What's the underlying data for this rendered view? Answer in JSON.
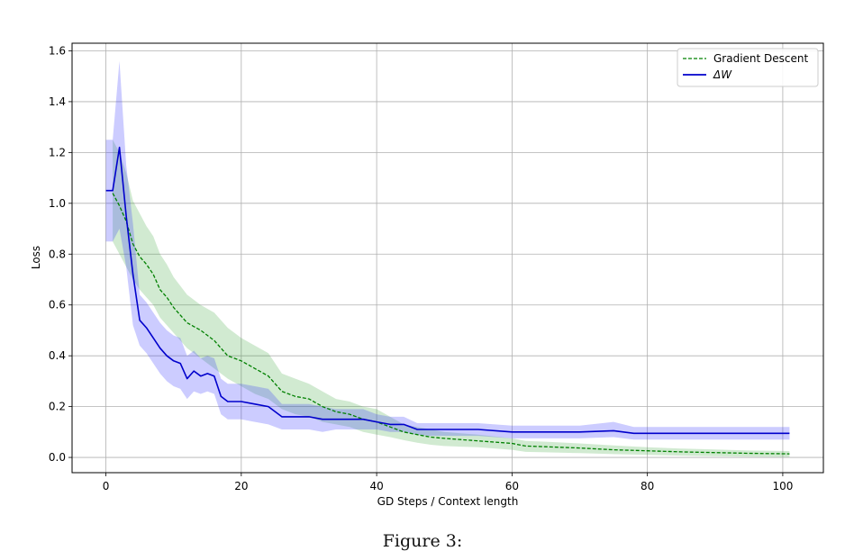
{
  "figure": {
    "caption": "Figure 3:"
  },
  "chart_data": {
    "type": "line",
    "title": "",
    "xlabel": "GD Steps / Context length",
    "ylabel": "Loss",
    "xlim": [
      -5,
      106
    ],
    "ylim": [
      -0.06,
      1.63
    ],
    "xticks": [
      0,
      20,
      40,
      60,
      80,
      100
    ],
    "yticks": [
      0.0,
      0.2,
      0.4,
      0.6,
      0.8,
      1.0,
      1.2,
      1.4,
      1.6
    ],
    "xtick_labels": [
      "0",
      "20",
      "40",
      "60",
      "80",
      "100"
    ],
    "ytick_labels": [
      "0.0",
      "0.2",
      "0.4",
      "0.6",
      "0.8",
      "1.0",
      "1.2",
      "1.4",
      "1.6"
    ],
    "grid": true,
    "legend_position": "top-right",
    "series": [
      {
        "name": "Gradient Descent",
        "color": "#008000",
        "line_style": "dashed",
        "band_color": "#2ca02c",
        "x": [
          1,
          2,
          3,
          4,
          5,
          6,
          7,
          8,
          9,
          10,
          12,
          14,
          16,
          18,
          20,
          22,
          24,
          26,
          28,
          30,
          32,
          34,
          36,
          38,
          40,
          42,
          44,
          46,
          48,
          50,
          55,
          60,
          62,
          65,
          70,
          75,
          80,
          85,
          90,
          95,
          101
        ],
        "y": [
          1.04,
          0.99,
          0.93,
          0.84,
          0.79,
          0.76,
          0.72,
          0.66,
          0.63,
          0.59,
          0.53,
          0.5,
          0.46,
          0.4,
          0.38,
          0.35,
          0.32,
          0.26,
          0.24,
          0.23,
          0.2,
          0.18,
          0.17,
          0.15,
          0.14,
          0.12,
          0.1,
          0.09,
          0.08,
          0.075,
          0.065,
          0.055,
          0.045,
          0.042,
          0.037,
          0.03,
          0.026,
          0.022,
          0.019,
          0.016,
          0.014
        ],
        "lower": [
          0.85,
          0.8,
          0.75,
          0.7,
          0.66,
          0.63,
          0.6,
          0.55,
          0.52,
          0.49,
          0.43,
          0.39,
          0.35,
          0.31,
          0.28,
          0.25,
          0.23,
          0.19,
          0.17,
          0.16,
          0.14,
          0.13,
          0.12,
          0.1,
          0.09,
          0.08,
          0.068,
          0.058,
          0.05,
          0.045,
          0.04,
          0.03,
          0.022,
          0.02,
          0.017,
          0.013,
          0.01,
          0.007,
          0.005,
          0.003,
          0.002
        ],
        "upper": [
          1.25,
          1.2,
          1.12,
          1.01,
          0.96,
          0.91,
          0.87,
          0.8,
          0.76,
          0.71,
          0.64,
          0.6,
          0.57,
          0.51,
          0.47,
          0.44,
          0.41,
          0.33,
          0.31,
          0.29,
          0.26,
          0.23,
          0.22,
          0.2,
          0.19,
          0.16,
          0.13,
          0.12,
          0.11,
          0.1,
          0.09,
          0.075,
          0.065,
          0.062,
          0.055,
          0.047,
          0.04,
          0.035,
          0.031,
          0.027,
          0.025
        ]
      },
      {
        "name": "ΔW",
        "color": "#0000cc",
        "line_style": "solid",
        "band_color": "#3333ff",
        "x": [
          0,
          1,
          2,
          3,
          4,
          5,
          6,
          7,
          8,
          9,
          10,
          11,
          12,
          13,
          14,
          15,
          16,
          17,
          18,
          20,
          22,
          24,
          26,
          28,
          30,
          32,
          34,
          36,
          38,
          40,
          42,
          44,
          46,
          48,
          50,
          55,
          60,
          65,
          70,
          75,
          78,
          80,
          85,
          90,
          95,
          101
        ],
        "y": [
          1.05,
          1.05,
          1.22,
          0.95,
          0.72,
          0.54,
          0.51,
          0.47,
          0.43,
          0.4,
          0.38,
          0.37,
          0.31,
          0.34,
          0.32,
          0.33,
          0.32,
          0.24,
          0.22,
          0.22,
          0.21,
          0.2,
          0.16,
          0.16,
          0.16,
          0.15,
          0.15,
          0.15,
          0.15,
          0.14,
          0.13,
          0.13,
          0.11,
          0.11,
          0.11,
          0.11,
          0.1,
          0.1,
          0.1,
          0.105,
          0.095,
          0.095,
          0.095,
          0.095,
          0.095,
          0.095
        ],
        "lower": [
          0.85,
          0.85,
          0.9,
          0.75,
          0.52,
          0.44,
          0.41,
          0.37,
          0.33,
          0.3,
          0.28,
          0.27,
          0.23,
          0.26,
          0.25,
          0.26,
          0.25,
          0.17,
          0.15,
          0.15,
          0.14,
          0.13,
          0.11,
          0.11,
          0.11,
          0.1,
          0.11,
          0.11,
          0.11,
          0.11,
          0.1,
          0.1,
          0.09,
          0.085,
          0.085,
          0.085,
          0.075,
          0.075,
          0.075,
          0.08,
          0.07,
          0.07,
          0.07,
          0.07,
          0.07,
          0.07
        ],
        "upper": [
          1.25,
          1.25,
          1.56,
          1.15,
          0.92,
          0.64,
          0.61,
          0.57,
          0.53,
          0.5,
          0.48,
          0.47,
          0.4,
          0.42,
          0.39,
          0.4,
          0.39,
          0.31,
          0.29,
          0.29,
          0.28,
          0.27,
          0.21,
          0.21,
          0.21,
          0.2,
          0.19,
          0.19,
          0.19,
          0.17,
          0.16,
          0.16,
          0.135,
          0.135,
          0.135,
          0.135,
          0.125,
          0.125,
          0.125,
          0.14,
          0.12,
          0.12,
          0.12,
          0.12,
          0.12,
          0.12
        ]
      }
    ]
  }
}
